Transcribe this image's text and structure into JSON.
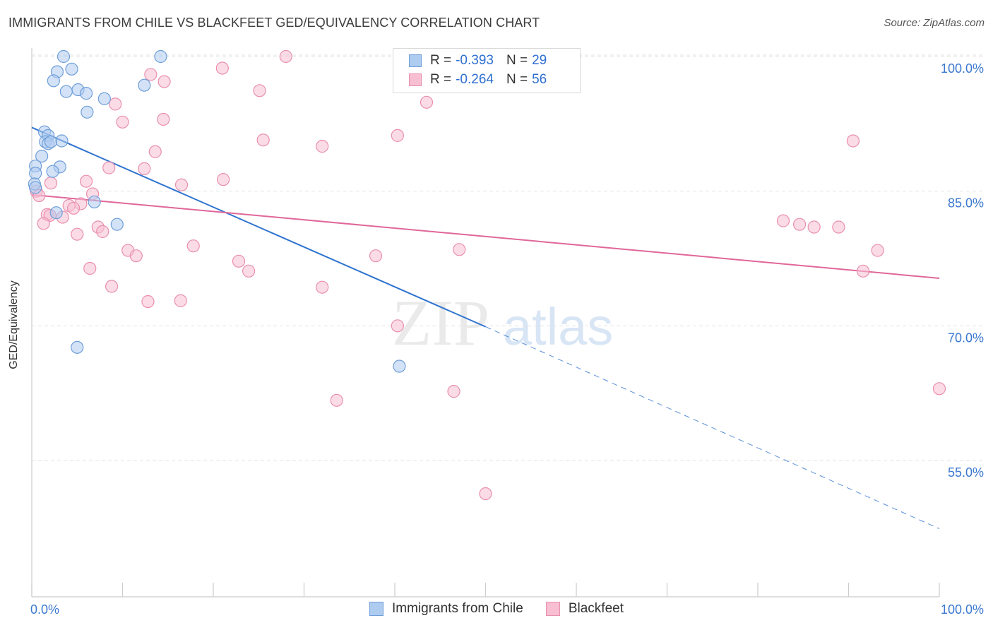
{
  "header": {
    "title": "IMMIGRANTS FROM CHILE VS BLACKFEET GED/EQUIVALENCY CORRELATION CHART",
    "source": "Source: ZipAtlas.com"
  },
  "legend_top": {
    "rows": [
      {
        "r_label": "R =",
        "r_value": "-0.393",
        "n_label": "N =",
        "n_value": "29"
      },
      {
        "r_label": "R =",
        "r_value": "-0.264",
        "n_label": "N =",
        "n_value": "56"
      }
    ]
  },
  "legend_bottom": {
    "items": [
      "Immigrants from Chile",
      "Blackfeet"
    ]
  },
  "watermark": {
    "zip": "ZIP",
    "atlas": "atlas"
  },
  "colors": {
    "blue_fill": "#aecbf0",
    "blue_stroke": "#6f9fd9",
    "blue_line": "#2f74d0",
    "pink_fill": "#f7bfd1",
    "pink_stroke": "#e98fae",
    "pink_line": "#e0679a",
    "tick_text": "#3b78cf",
    "grid": "#e3e3e3"
  },
  "chart_data": {
    "type": "scatter",
    "title": "IMMIGRANTS FROM CHILE VS BLACKFEET GED/EQUIVALENCY CORRELATION CHART",
    "xlabel": "",
    "ylabel": "GED/Equivalency",
    "xlim": [
      0,
      100
    ],
    "ylim": [
      40,
      101.5
    ],
    "x_tick_labels": [
      "0.0%",
      "100.0%"
    ],
    "y_ticks": [
      {
        "value": 100,
        "label": "100.0%"
      },
      {
        "value": 85,
        "label": "85.0%"
      },
      {
        "value": 70,
        "label": "70.0%"
      },
      {
        "value": 55,
        "label": "55.0%"
      }
    ],
    "grid": true,
    "legend_position": "top-center",
    "series": [
      {
        "name": "Immigrants from Chile",
        "color": "blue",
        "r": -0.393,
        "n": 29,
        "points": [
          [
            3.5,
            100.0
          ],
          [
            14.2,
            100.0
          ],
          [
            4.4,
            98.6
          ],
          [
            2.8,
            98.3
          ],
          [
            2.4,
            97.3
          ],
          [
            12.4,
            96.8
          ],
          [
            3.8,
            96.1
          ],
          [
            5.1,
            96.3
          ],
          [
            6.0,
            95.9
          ],
          [
            8.0,
            95.3
          ],
          [
            6.1,
            93.8
          ],
          [
            1.4,
            91.6
          ],
          [
            1.8,
            91.2
          ],
          [
            3.3,
            90.6
          ],
          [
            1.5,
            90.5
          ],
          [
            1.8,
            90.3
          ],
          [
            2.1,
            90.5
          ],
          [
            1.1,
            88.9
          ],
          [
            0.4,
            87.8
          ],
          [
            3.1,
            87.7
          ],
          [
            0.4,
            87.0
          ],
          [
            2.3,
            87.2
          ],
          [
            0.3,
            85.8
          ],
          [
            0.4,
            85.4
          ],
          [
            6.9,
            83.8
          ],
          [
            2.7,
            82.6
          ],
          [
            9.4,
            81.3
          ],
          [
            5.0,
            67.6
          ],
          [
            40.5,
            65.5
          ]
        ],
        "trend": {
          "x0": 0,
          "y0": 92.1,
          "x1": 50,
          "y1": 69.9,
          "dash_to_x": 100,
          "dash_to_y": 47.4
        }
      },
      {
        "name": "Blackfeet",
        "color": "pink",
        "r": -0.264,
        "n": 56,
        "points": [
          [
            28.0,
            100.0
          ],
          [
            21.0,
            98.7
          ],
          [
            13.1,
            98.0
          ],
          [
            14.6,
            97.2
          ],
          [
            25.1,
            96.2
          ],
          [
            43.5,
            94.9
          ],
          [
            9.2,
            94.7
          ],
          [
            10.0,
            92.7
          ],
          [
            14.5,
            93.0
          ],
          [
            25.5,
            90.7
          ],
          [
            32.0,
            90.0
          ],
          [
            40.3,
            91.2
          ],
          [
            90.5,
            90.6
          ],
          [
            13.6,
            89.4
          ],
          [
            8.5,
            87.6
          ],
          [
            12.4,
            87.5
          ],
          [
            21.1,
            86.3
          ],
          [
            6.0,
            86.1
          ],
          [
            16.5,
            85.7
          ],
          [
            2.1,
            85.9
          ],
          [
            0.5,
            85.0
          ],
          [
            0.8,
            84.5
          ],
          [
            6.7,
            84.7
          ],
          [
            4.1,
            83.4
          ],
          [
            5.4,
            83.6
          ],
          [
            4.6,
            83.1
          ],
          [
            1.7,
            82.4
          ],
          [
            2.0,
            82.3
          ],
          [
            3.4,
            82.1
          ],
          [
            1.3,
            81.4
          ],
          [
            7.3,
            81.0
          ],
          [
            7.8,
            80.5
          ],
          [
            5.0,
            80.2
          ],
          [
            82.8,
            81.7
          ],
          [
            84.6,
            81.3
          ],
          [
            86.2,
            81.0
          ],
          [
            88.9,
            81.0
          ],
          [
            17.8,
            78.9
          ],
          [
            10.6,
            78.4
          ],
          [
            11.5,
            77.8
          ],
          [
            37.9,
            77.8
          ],
          [
            47.1,
            78.5
          ],
          [
            22.8,
            77.2
          ],
          [
            93.2,
            78.4
          ],
          [
            6.4,
            76.4
          ],
          [
            23.9,
            76.1
          ],
          [
            91.6,
            76.1
          ],
          [
            8.8,
            74.4
          ],
          [
            32.0,
            74.3
          ],
          [
            12.8,
            72.7
          ],
          [
            16.4,
            72.8
          ],
          [
            40.3,
            70.0
          ],
          [
            33.6,
            61.7
          ],
          [
            46.5,
            62.7
          ],
          [
            100.0,
            63.0
          ],
          [
            50.0,
            51.3
          ]
        ],
        "trend": {
          "x0": 0,
          "y0": 84.6,
          "x1": 100,
          "y1": 75.3
        }
      }
    ]
  }
}
